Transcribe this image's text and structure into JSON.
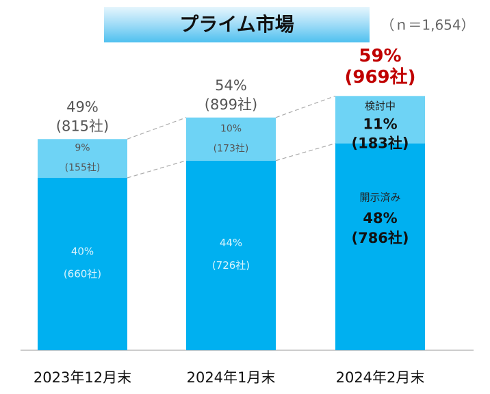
{
  "chart_data": {
    "type": "bar",
    "stacked": true,
    "title": "プライム市場",
    "subtitle": "（ｎ＝1,654）",
    "categories": [
      "2023年12月末",
      "2024年1月末",
      "2024年2月末"
    ],
    "series": [
      {
        "name": "開示済み",
        "color": "#00b0f0",
        "values": [
          40,
          44,
          48
        ],
        "value_labels": [
          "40%",
          "44%",
          "48%"
        ],
        "count_labels": [
          "(660社)",
          "(726社)",
          "(786社)"
        ]
      },
      {
        "name": "検討中",
        "color": "#6ed3f5",
        "values": [
          9,
          10,
          11
        ],
        "value_labels": [
          "9%",
          "10%",
          "11%"
        ],
        "count_labels": [
          "(155社)",
          "(173社)",
          "(183社)"
        ]
      }
    ],
    "totals": [
      49,
      54,
      59
    ],
    "total_labels": [
      "49%",
      "54%",
      "59%"
    ],
    "total_count_labels": [
      "(815社)",
      "(899社)",
      "(969社)"
    ],
    "highlight_color": "#c00000"
  }
}
